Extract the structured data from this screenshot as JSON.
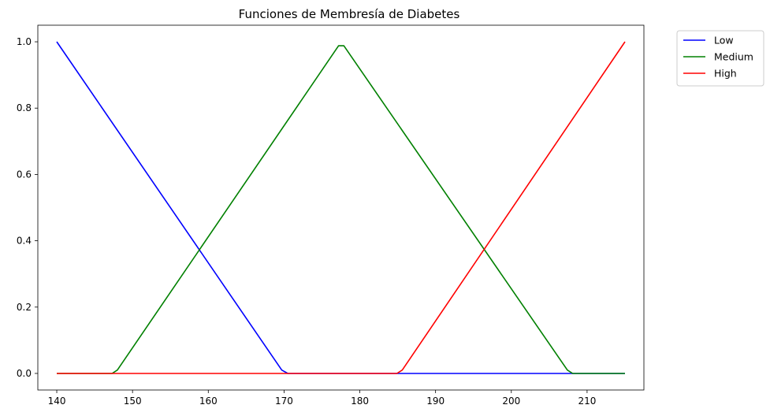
{
  "chart_data": {
    "type": "line",
    "title": "Funciones de Membresía de Diabetes",
    "xlabel": "",
    "ylabel": "",
    "xlim": [
      137.5,
      217.5
    ],
    "ylim": [
      -0.05,
      1.05
    ],
    "xticks": [
      140,
      150,
      160,
      170,
      180,
      190,
      200,
      210
    ],
    "yticks": [
      0.0,
      0.2,
      0.4,
      0.6,
      0.8,
      1.0
    ],
    "xtick_labels": [
      "140",
      "150",
      "160",
      "170",
      "180",
      "190",
      "200",
      "210"
    ],
    "ytick_labels": [
      "0.0",
      "0.2",
      "0.4",
      "0.6",
      "0.8",
      "1.0"
    ],
    "grid": false,
    "legend": "outside-top-right",
    "series": [
      {
        "name": "Low",
        "color": "#0000ff",
        "x": [
          140,
          169.7,
          170.5,
          215
        ],
        "y": [
          1.0,
          0.01,
          0.0,
          0.0
        ]
      },
      {
        "name": "Medium",
        "color": "#008000",
        "x": [
          140,
          147.3,
          148.0,
          177.2,
          177.9,
          207.4,
          208.1,
          215
        ],
        "y": [
          0.0,
          0.0,
          0.01,
          0.988,
          0.988,
          0.01,
          0.0,
          0.0
        ]
      },
      {
        "name": "High",
        "color": "#ff0000",
        "x": [
          140,
          184.9,
          185.6,
          215
        ],
        "y": [
          0.0,
          0.0,
          0.01,
          1.0
        ]
      }
    ]
  }
}
